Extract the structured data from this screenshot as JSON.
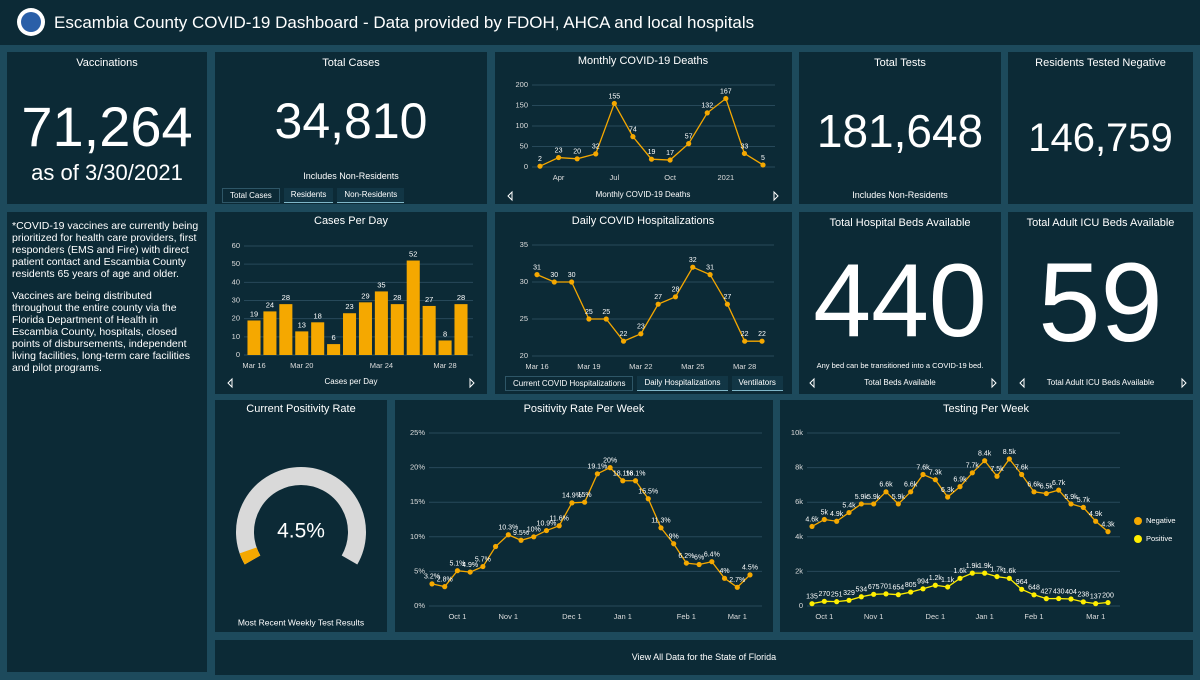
{
  "header": {
    "title": "Escambia County COVID-19 Dashboard - Data provided by FDOH, AHCA and local hospitals"
  },
  "cards": {
    "vaccinations": {
      "title": "Vaccinations",
      "value": "71,264",
      "subtitle": "as of 3/30/2021"
    },
    "total_cases": {
      "title": "Total Cases",
      "value": "34,810",
      "subtitle": "Includes Non-Residents",
      "tabs": [
        "Total Cases",
        "Residents",
        "Non-Residents"
      ]
    },
    "total_tests": {
      "title": "Total Tests",
      "value": "181,648",
      "subtitle": "Includes Non-Residents"
    },
    "residents_negative": {
      "title": "Residents Tested Negative",
      "value": "146,759"
    },
    "hospital_beds": {
      "title": "Total Hospital Beds Available",
      "value": "440",
      "subtitle": "Any bed can be transitioned into a COVID-19 bed.",
      "caption": "Total Beds Available"
    },
    "icu_beds": {
      "title": "Total Adult ICU Beds Available",
      "value": "59",
      "caption": "Total Adult ICU Beds Available"
    }
  },
  "note": [
    "*COVID-19 vaccines are currently being prioritized for health care providers, first responders (EMS and Fire) with direct patient contact and Escambia County residents 65 years of age and older.",
    "Vaccines are being distributed throughout the entire county via the Florida Department of Health in Escambia County, hospitals, closed points of disbursements, independent living facilities, long-term care facilities and pilot programs."
  ],
  "chart_data": [
    {
      "type": "line",
      "title": "Monthly COVID-19 Deaths",
      "caption": "Monthly COVID-19 Deaths",
      "categories": [
        null,
        "Apr",
        null,
        null,
        "Jul",
        null,
        null,
        "Oct",
        null,
        null,
        "2021",
        null,
        null
      ],
      "values": [
        2,
        23,
        20,
        32,
        155,
        74,
        19,
        17,
        57,
        132,
        167,
        33,
        5
      ],
      "color": "#f5a800",
      "ylim": [
        0,
        200
      ],
      "yticks": [
        0,
        50,
        100,
        150,
        200
      ],
      "grid": true
    },
    {
      "type": "bar",
      "title": "Cases Per Day",
      "caption": "Cases per Day",
      "categories": [
        "Mar 16",
        null,
        null,
        "Mar 20",
        null,
        null,
        null,
        null,
        "Mar 24",
        null,
        null,
        null,
        "Mar 28",
        null
      ],
      "values": [
        19,
        24,
        28,
        13,
        18,
        6,
        23,
        29,
        35,
        28,
        52,
        27,
        8,
        28
      ],
      "color": "#f5a800",
      "ylim": [
        0,
        60
      ],
      "yticks": [
        0,
        10,
        20,
        30,
        40,
        50,
        60
      ],
      "grid": true
    },
    {
      "type": "line",
      "title": "Daily COVID Hospitalizations",
      "tabs": [
        "Current COVID Hospitalizations",
        "Daily Hospitalizations",
        "Ventilators"
      ],
      "categories": [
        "Mar 16",
        null,
        null,
        "Mar 19",
        null,
        null,
        "Mar 22",
        null,
        null,
        "Mar 25",
        null,
        null,
        "Mar 28",
        null
      ],
      "values": [
        31,
        30,
        30,
        25,
        25,
        22,
        23,
        27,
        28,
        32,
        31,
        27,
        22,
        22
      ],
      "color": "#f5a800",
      "ylim": [
        20,
        35
      ],
      "yticks": [
        20,
        25,
        30,
        35
      ],
      "grid": true
    },
    {
      "type": "gauge",
      "title": "Current Positivity Rate",
      "caption": "Most Recent Weekly Test Results",
      "value": 4.5,
      "value_label": "4.5%",
      "ylim": [
        0,
        100
      ],
      "color": "#f5a800",
      "track_color": "#d9d9d9"
    },
    {
      "type": "line",
      "title": "Positivity Rate Per Week",
      "categories": [
        null,
        null,
        "Oct 1",
        null,
        null,
        null,
        "Nov 1",
        null,
        null,
        null,
        null,
        "Dec 1",
        null,
        null,
        null,
        "Jan 1",
        null,
        null,
        null,
        null,
        "Feb 1",
        null,
        null,
        null,
        "Mar 1",
        null
      ],
      "values": [
        3.2,
        2.8,
        5.1,
        4.9,
        5.7,
        8.6,
        10.3,
        9.5,
        10,
        10.9,
        11.6,
        14.9,
        15,
        19.1,
        20,
        18.1,
        18.1,
        15.5,
        11.3,
        9,
        6.2,
        6,
        6.4,
        4,
        2.7,
        4.5
      ],
      "value_labels": [
        "3.2%",
        "2.8%",
        "5.1%",
        "4.9%",
        "5.7%",
        null,
        "10.3%",
        "9.5%",
        "10%",
        "10.9%",
        "11.6%",
        "14.9%",
        "15%",
        "19.1%",
        "20%",
        "18.1%",
        "18.1%",
        "15.5%",
        "11.3%",
        "9%",
        "6.2%",
        "6%",
        "6.4%",
        "4%",
        "2.7%",
        "4.5%"
      ],
      "color": "#f5a800",
      "ylim": [
        0,
        25
      ],
      "yticks": [
        {
          "value": 0,
          "label": "0%"
        },
        {
          "value": 5,
          "label": "5%"
        },
        {
          "value": 10,
          "label": "10%"
        },
        {
          "value": 15,
          "label": "15%"
        },
        {
          "value": 20,
          "label": "20%"
        },
        {
          "value": 25,
          "label": "25%"
        }
      ],
      "grid": true
    },
    {
      "type": "line",
      "title": "Testing Per Week",
      "categories": [
        null,
        "Oct 1",
        null,
        null,
        null,
        "Nov 1",
        null,
        null,
        null,
        null,
        "Dec 1",
        null,
        null,
        null,
        "Jan 1",
        null,
        null,
        null,
        "Feb 1",
        null,
        null,
        null,
        null,
        "Mar 1",
        null
      ],
      "series": [
        {
          "name": "Negative",
          "color": "#f5a800",
          "values": [
            4600,
            5000,
            4900,
            5400,
            5900,
            5900,
            6600,
            5900,
            6600,
            7600,
            7300,
            6300,
            6900,
            7700,
            8400,
            7500,
            8500,
            7600,
            6600,
            6500,
            6700,
            5900,
            5700,
            4900,
            4300
          ],
          "value_labels": [
            "4.6k",
            "5k",
            "4.9k",
            "5.4k",
            "5.9k",
            "5.9k",
            "6.6k",
            "5.9k",
            "6.6k",
            "7.6k",
            "7.3k",
            "6.3k",
            "6.9k",
            "7.7k",
            "8.4k",
            "7.5k",
            "8.5k",
            "7.6k",
            "6.6k",
            "6.5k",
            "6.7k",
            "5.9k",
            "5.7k",
            "4.9k",
            "4.3k"
          ]
        },
        {
          "name": "Positive",
          "color": "#ffee00",
          "values": [
            135,
            270,
            251,
            329,
            534,
            675,
            701,
            654,
            805,
            994,
            1200,
            1100,
            1600,
            1900,
            1900,
            1700,
            1600,
            964,
            648,
            427,
            430,
            404,
            238,
            137,
            200
          ],
          "value_labels": [
            "135",
            "270",
            "251",
            "329",
            "534",
            "675",
            "701",
            "654",
            "805",
            "994",
            "1.2k",
            "1.1k",
            "1.6k",
            "1.9k",
            "1.9k",
            "1.7k",
            "1.6k",
            "964",
            "648",
            "427",
            "430",
            "404",
            "238",
            "137",
            "200"
          ]
        }
      ],
      "ylim": [
        0,
        10000
      ],
      "yticks": [
        0,
        {
          "value": 2000,
          "label": "2k"
        },
        {
          "value": 4000,
          "label": "4k"
        },
        {
          "value": 6000,
          "label": "6k"
        },
        {
          "value": 8000,
          "label": "8k"
        },
        {
          "value": 10000,
          "label": "10k"
        }
      ],
      "grid": true,
      "legend": "right"
    }
  ],
  "footer": {
    "link": "View All Data for the State of Florida"
  }
}
